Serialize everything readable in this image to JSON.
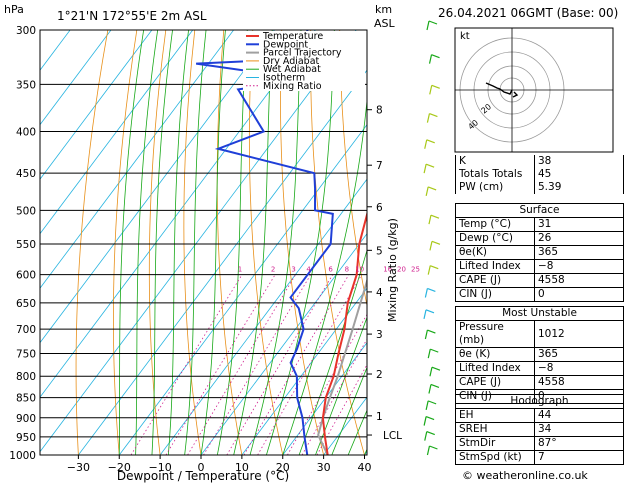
{
  "header": {
    "location": "1°21'N  172°55'E  2m  ASL",
    "datetime": "26.04.2021  06GMT  (Base: 00)",
    "hpa_label": "hPa",
    "km_label": "km",
    "asl_label": "ASL"
  },
  "credit": "© weatheronline.co.uk",
  "colors": {
    "temperature": "#e8332a",
    "dewpoint": "#1f3fd8",
    "parcel": "#a0a0a0",
    "dry_adiabat": "#e8901a",
    "wet_adiabat": "#18a818",
    "isotherm": "#28b4e0",
    "mixing_ratio": "#d0208f"
  },
  "chart_data": {
    "type": "skew-t",
    "xlabel": "Dewpoint / Temperature (°C)",
    "ylabel_right": "Mixing Ratio (g/kg)",
    "xlim": [
      -35,
      40
    ],
    "x_ticks": [
      -30,
      -20,
      -10,
      0,
      10,
      20,
      30,
      40
    ],
    "x_tick_labels": [
      "−30",
      "−20",
      "−10",
      "0",
      "10",
      "20",
      "30",
      "40"
    ],
    "pressure_levels": [
      300,
      350,
      400,
      450,
      500,
      550,
      600,
      650,
      700,
      750,
      800,
      850,
      900,
      950,
      1000
    ],
    "height_km": [
      {
        "p": 376,
        "label": "8"
      },
      {
        "p": 440,
        "label": "7"
      },
      {
        "p": 495,
        "label": "6"
      },
      {
        "p": 560,
        "label": "5"
      },
      {
        "p": 630,
        "label": "4"
      },
      {
        "p": 710,
        "label": "3"
      },
      {
        "p": 795,
        "label": "2"
      },
      {
        "p": 895,
        "label": "1"
      },
      {
        "p": 945,
        "label": "LCL"
      }
    ],
    "mixing_ratio_labels": [
      1,
      2,
      3,
      4,
      6,
      8,
      10,
      16,
      20,
      25
    ],
    "legend": [
      "Temperature",
      "Dewpoint",
      "Parcel Trajectory",
      "Dry Adiabat",
      "Wet Adiabat",
      "Isotherm",
      "Mixing Ratio"
    ],
    "temperature": [
      {
        "p": 1000,
        "t": 31
      },
      {
        "p": 950,
        "t": 27
      },
      {
        "p": 900,
        "t": 23
      },
      {
        "p": 850,
        "t": 20
      },
      {
        "p": 800,
        "t": 18
      },
      {
        "p": 750,
        "t": 15
      },
      {
        "p": 700,
        "t": 12
      },
      {
        "p": 650,
        "t": 8
      },
      {
        "p": 600,
        "t": 5
      },
      {
        "p": 550,
        "t": 0
      },
      {
        "p": 500,
        "t": -4
      },
      {
        "p": 450,
        "t": -10
      },
      {
        "p": 400,
        "t": -16
      },
      {
        "p": 350,
        "t": -24
      },
      {
        "p": 330,
        "t": -29
      }
    ],
    "dewpoint": [
      {
        "p": 1000,
        "t": 26
      },
      {
        "p": 950,
        "t": 22
      },
      {
        "p": 900,
        "t": 18
      },
      {
        "p": 850,
        "t": 13
      },
      {
        "p": 800,
        "t": 9
      },
      {
        "p": 770,
        "t": 5
      },
      {
        "p": 740,
        "t": 4
      },
      {
        "p": 700,
        "t": 2
      },
      {
        "p": 660,
        "t": -3
      },
      {
        "p": 640,
        "t": -7
      },
      {
        "p": 550,
        "t": -7
      },
      {
        "p": 505,
        "t": -12
      },
      {
        "p": 500,
        "t": -17
      },
      {
        "p": 470,
        "t": -21
      },
      {
        "p": 450,
        "t": -24
      },
      {
        "p": 420,
        "t": -52
      },
      {
        "p": 400,
        "t": -44
      },
      {
        "p": 355,
        "t": -58
      },
      {
        "p": 345,
        "t": -43
      },
      {
        "p": 330,
        "t": -73
      },
      {
        "p": 325,
        "t": -46
      },
      {
        "p": 300,
        "t": -52
      }
    ],
    "parcel": [
      {
        "p": 1000,
        "t": 31
      },
      {
        "p": 945,
        "t": 25
      },
      {
        "p": 900,
        "t": 23
      },
      {
        "p": 850,
        "t": 21
      },
      {
        "p": 800,
        "t": 19
      },
      {
        "p": 700,
        "t": 14
      },
      {
        "p": 600,
        "t": 8
      },
      {
        "p": 500,
        "t": 0
      },
      {
        "p": 400,
        "t": -10
      },
      {
        "p": 350,
        "t": -17
      }
    ]
  },
  "hodograph": {
    "label": "kt",
    "ring_labels": [
      "20",
      "40"
    ]
  },
  "indices": [
    {
      "key": "K",
      "value": "38"
    },
    {
      "key": "Totals Totals",
      "value": "45"
    },
    {
      "key": "PW (cm)",
      "value": "5.39"
    }
  ],
  "surface": {
    "title": "Surface",
    "rows": [
      {
        "key": "Temp (°C)",
        "value": "31"
      },
      {
        "key": "Dewp (°C)",
        "value": "26"
      },
      {
        "key": "θe(K)",
        "value": "365"
      },
      {
        "key": "Lifted Index",
        "value": "−8"
      },
      {
        "key": "CAPE (J)",
        "value": "4558"
      },
      {
        "key": "CIN (J)",
        "value": "0"
      }
    ]
  },
  "most_unstable": {
    "title": "Most Unstable",
    "rows": [
      {
        "key": "Pressure (mb)",
        "value": "1012"
      },
      {
        "key": "θe (K)",
        "value": "365"
      },
      {
        "key": "Lifted Index",
        "value": "−8"
      },
      {
        "key": "CAPE (J)",
        "value": "4558"
      },
      {
        "key": "CIN (J)",
        "value": "0"
      }
    ]
  },
  "hodograph_table": {
    "title": "Hodograph",
    "rows": [
      {
        "key": "EH",
        "value": "44"
      },
      {
        "key": "SREH",
        "value": "34"
      },
      {
        "key": "StmDir",
        "value": "87°"
      },
      {
        "key": "StmSpd (kt)",
        "value": "7"
      }
    ]
  }
}
